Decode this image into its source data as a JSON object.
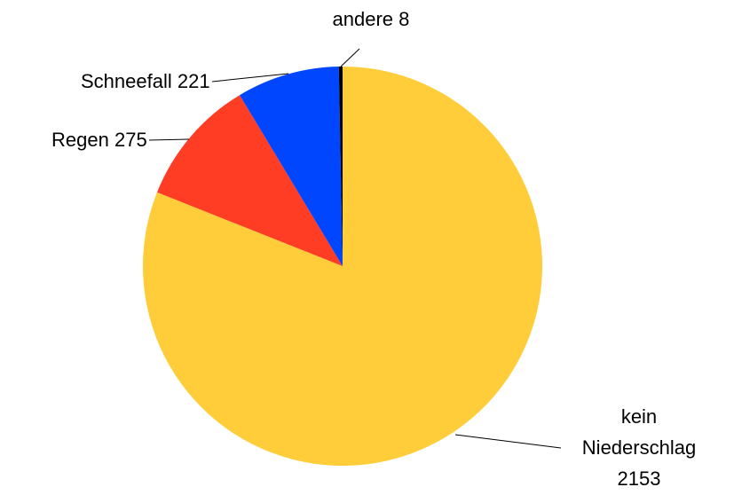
{
  "chart_data": {
    "type": "pie",
    "categories": [
      "kein Niederschlag",
      "Regen",
      "Schneefall",
      "andere"
    ],
    "values": [
      2153,
      275,
      221,
      8
    ],
    "colors": [
      "#ffcd3a",
      "#ff3c24",
      "#0046ff",
      "#000000"
    ]
  }
}
